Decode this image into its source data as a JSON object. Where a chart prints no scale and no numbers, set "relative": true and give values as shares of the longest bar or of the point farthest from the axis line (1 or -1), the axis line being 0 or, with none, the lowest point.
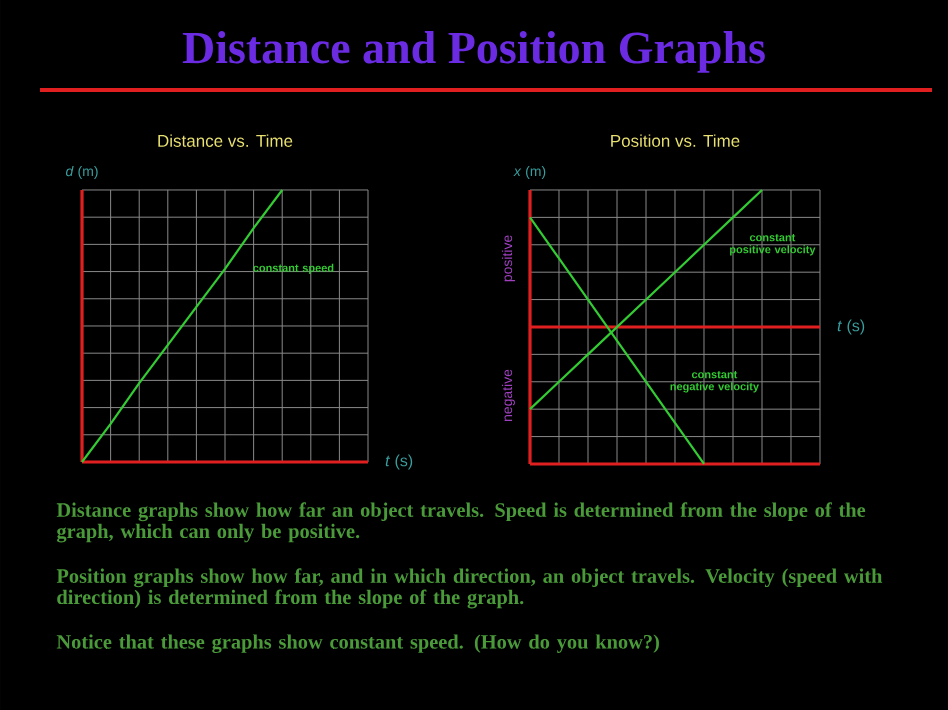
{
  "chart_data": [
    {
      "type": "line",
      "title": "Distance vs. Time",
      "xlabel": "*t* (s)",
      "ylabel": "*d* (m)",
      "categories": [
        null,
        null,
        null,
        null,
        null,
        null,
        null,
        null,
        null,
        null,
        null
      ],
      "relative": true,
      "grid": true,
      "marker": "none",
      "line_style": "solid",
      "series": [
        {
          "name": "constant speed",
          "color": "#33CC33",
          "values": [
            0,
            0.14,
            0.29,
            0.43,
            0.57,
            0.71,
            0.86,
            1,
            null,
            null,
            null
          ]
        }
      ]
    },
    {
      "type": "line",
      "title": "Position vs. Time",
      "xlabel": "*t* (s)",
      "ylabel": "*x* (m)",
      "annotations": [
        "positive",
        "negative"
      ],
      "categories": [
        null,
        null,
        null,
        null,
        null,
        null,
        null,
        null,
        null,
        null,
        null
      ],
      "relative": true,
      "grid": true,
      "marker": "none",
      "line_style": "solid",
      "ref_lines": [
        {
          "axis": "y",
          "value": 0,
          "color": "#E02020"
        }
      ],
      "series": [
        {
          "name": "constant positive velocity",
          "color": "#33CC33",
          "values": [
            -0.6,
            -0.4,
            -0.2,
            0,
            0.2,
            0.4,
            0.6,
            0.8,
            1.0,
            null,
            null
          ]
        },
        {
          "name": "constant negative velocity",
          "color": "#33CC33",
          "values": [
            0.8,
            0.5,
            0.2,
            -0.1,
            -0.4,
            -0.7,
            -1.0,
            null,
            null,
            null,
            null
          ]
        }
      ]
    },
    {
      "type": "other",
      "title": "Distance and Position Graphs",
      "annotations": [
        "Distance graphs show how far an object travels. Speed is determined from the slope of the graph, which can only be positive.",
        "Position graphs show how far, and in which direction, an object travels. Velocity (speed with direction) is determined from the slope of the graph.",
        "Notice that these graphs show constant speed. (How do you know?)"
      ]
    }
  ]
}
